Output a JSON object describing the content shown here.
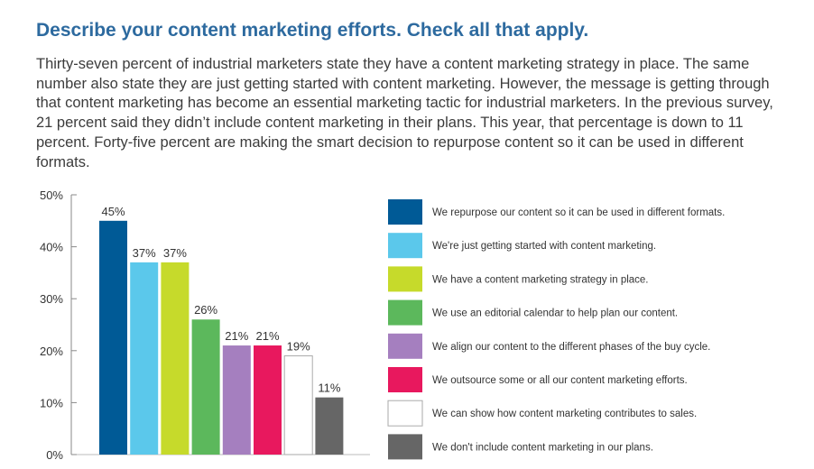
{
  "heading": "Describe your content marketing efforts. Check all that apply.",
  "intro": "Thirty-seven percent of industrial marketers state they have a content marketing strategy in place. The same number also state they are just getting started with content marketing. However, the message is getting through that content marketing has become an essential marketing tactic for industrial marketers. In the previous survey, 21 percent said they didn’t include content marketing in their plans. This year, that percentage is down to 11 percent. Forty-five percent are making the smart decision to repurpose content so it can be used in different formats.",
  "chart_data": {
    "type": "bar",
    "categories": [
      "We repurpose our content so it can be used in different formats.",
      "We're just getting started with content marketing.",
      "We have a content marketing strategy in place.",
      "We use an editorial calendar to help plan our content.",
      "We align our content to the different phases of the buy cycle.",
      "We outsource some or all our content marketing efforts.",
      "We can show how content marketing contributes to sales.",
      "We don't include content marketing in our plans."
    ],
    "values": [
      45,
      37,
      37,
      26,
      21,
      21,
      19,
      11
    ],
    "data_labels": [
      "45%",
      "37%",
      "37%",
      "26%",
      "21%",
      "21%",
      "19%",
      "11%"
    ],
    "colors": [
      "#005a96",
      "#5bc8eb",
      "#c6da2b",
      "#5cb85c",
      "#a57fbf",
      "#e8185e",
      "#ffffff",
      "#666666"
    ],
    "y_ticks": [
      0,
      10,
      20,
      30,
      40,
      50
    ],
    "y_tick_labels": [
      "0%",
      "10%",
      "20%",
      "30%",
      "40%",
      "50%"
    ],
    "ylim": [
      0,
      50
    ],
    "grid": false,
    "legend_position": "right"
  }
}
